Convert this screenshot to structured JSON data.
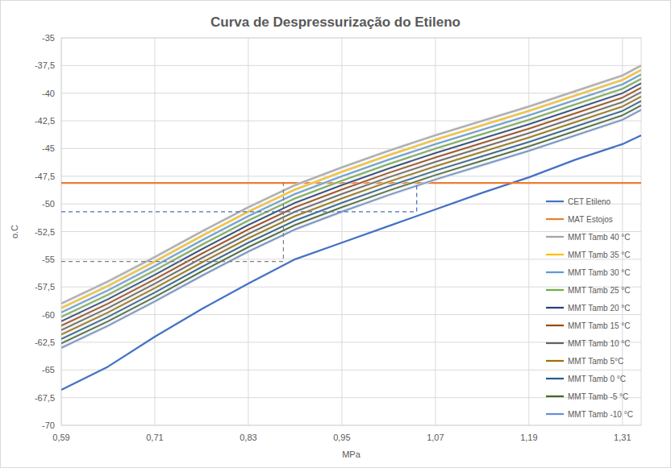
{
  "chart_data": {
    "type": "line",
    "title": "Curva de Despressurização do Etileno",
    "x_label": "MPa",
    "y_label": "o.C",
    "x": [
      0.59,
      0.65,
      0.71,
      0.77,
      0.83,
      0.89,
      0.95,
      1.01,
      1.07,
      1.13,
      1.19,
      1.25,
      1.31,
      1.334
    ],
    "xlim": [
      0.59,
      1.334
    ],
    "ylim": [
      -70,
      -35
    ],
    "xticks": [
      {
        "value": 0.59,
        "label": "0,59"
      },
      {
        "value": 0.71,
        "label": "0,71"
      },
      {
        "value": 0.83,
        "label": "0,83"
      },
      {
        "value": 0.95,
        "label": "0,95"
      },
      {
        "value": 1.07,
        "label": "1,07"
      },
      {
        "value": 1.19,
        "label": "1,19"
      },
      {
        "value": 1.31,
        "label": "1,31"
      }
    ],
    "yticks": [
      -35,
      {
        "value": -37.5,
        "label": "-37,5"
      },
      -40,
      {
        "value": -42.5,
        "label": "-42,5"
      },
      -45,
      {
        "value": -47.5,
        "label": "-47,5"
      },
      -50,
      {
        "value": -52.5,
        "label": "-52,5"
      },
      -55,
      {
        "value": -57.5,
        "label": "-57,5"
      },
      -60,
      {
        "value": -62.5,
        "label": "-62,5"
      },
      -65,
      {
        "value": -67.5,
        "label": "-67,5"
      },
      -70
    ],
    "grid": true,
    "legend": "right",
    "series": [
      {
        "name": "CET Etileno",
        "color": "#4472c4",
        "values": [
          -66.8,
          -64.7,
          -62.0,
          -59.5,
          -57.2,
          -55.0,
          -53.5,
          -52.0,
          -50.5,
          -49.0,
          -47.6,
          -46.0,
          -44.6,
          -43.8
        ]
      },
      {
        "name": "MAT Estojos",
        "color": "#ed7d31",
        "values": [
          -48.1,
          -48.1,
          -48.1,
          -48.1,
          -48.1,
          -48.1,
          -48.1,
          -48.1,
          -48.1,
          -48.1,
          -48.1,
          -48.1,
          -48.1,
          -48.1
        ]
      },
      {
        "name": "MMT Tamb 40 °C",
        "color": "#a5a5a5",
        "values": [
          -59,
          -57,
          -54.8,
          -52.5,
          -50.3,
          -48.3,
          -46.7,
          -45.2,
          -43.8,
          -42.5,
          -41.2,
          -39.8,
          -38.4,
          -37.5
        ]
      },
      {
        "name": "MMT Tamb 35 °C",
        "color": "#ffc000",
        "values": [
          -59.4,
          -57.4,
          -55.2,
          -52.9,
          -50.7,
          -48.7,
          -47.1,
          -45.6,
          -44.2,
          -42.9,
          -41.6,
          -40.2,
          -38.8,
          -37.9
        ]
      },
      {
        "name": "MMT Tamb 30 °C",
        "color": "#5b9bd5",
        "values": [
          -59.8,
          -57.8,
          -55.6,
          -53.3,
          -51.1,
          -49.1,
          -47.5,
          -46,
          -44.6,
          -43.3,
          -42,
          -40.6,
          -39.2,
          -38.3
        ]
      },
      {
        "name": "MMT Tamb 25 °C",
        "color": "#70ad47",
        "values": [
          -60.2,
          -58.2,
          -56,
          -53.7,
          -51.5,
          -49.5,
          -47.9,
          -46.4,
          -45,
          -43.7,
          -42.4,
          -41,
          -39.6,
          -38.7
        ]
      },
      {
        "name": "MMT Tamb 20 °C",
        "color": "#264478",
        "values": [
          -60.6,
          -58.6,
          -56.4,
          -54.1,
          -51.9,
          -49.9,
          -48.3,
          -46.8,
          -45.4,
          -44.1,
          -42.8,
          -41.4,
          -40,
          -39.1
        ]
      },
      {
        "name": "MMT Tamb 15 °C",
        "color": "#9e480e",
        "values": [
          -61,
          -59,
          -56.8,
          -54.5,
          -52.3,
          -50.3,
          -48.7,
          -47.2,
          -45.8,
          -44.5,
          -43.2,
          -41.8,
          -40.4,
          -39.5
        ]
      },
      {
        "name": "MMT Tamb 10 °C",
        "color": "#636363",
        "values": [
          -61.4,
          -59.4,
          -57.2,
          -54.9,
          -52.7,
          -50.7,
          -49.1,
          -47.6,
          -46.2,
          -44.9,
          -43.6,
          -42.2,
          -40.8,
          -39.9
        ]
      },
      {
        "name": "MMT Tamb 5°C",
        "color": "#997300",
        "values": [
          -61.8,
          -59.8,
          -57.6,
          -55.3,
          -53.1,
          -51.1,
          -49.5,
          -48,
          -46.6,
          -45.3,
          -44,
          -42.6,
          -41.2,
          -40.3
        ]
      },
      {
        "name": "MMT Tamb 0 °C",
        "color": "#255e91",
        "values": [
          -62.2,
          -60.2,
          -58,
          -55.7,
          -53.5,
          -51.5,
          -49.9,
          -48.4,
          -47,
          -45.7,
          -44.4,
          -43,
          -41.6,
          -40.7
        ]
      },
      {
        "name": "MMT Tamb -5 °C",
        "color": "#43682b",
        "values": [
          -62.6,
          -60.6,
          -58.4,
          -56.1,
          -53.9,
          -51.9,
          -50.3,
          -48.8,
          -47.4,
          -46.1,
          -44.8,
          -43.4,
          -42,
          -41.1
        ]
      },
      {
        "name": "MMT Tamb -10 °C",
        "color": "#698ed0",
        "values": [
          -63,
          -61,
          -58.8,
          -56.5,
          -54.3,
          -52.3,
          -50.7,
          -49.2,
          -47.8,
          -46.5,
          -45.2,
          -43.8,
          -42.4,
          -41.5
        ]
      },
      {
        "color": "#4472c4",
        "line_style": "dashed",
        "x": [
          0.59,
          1.046,
          1.046
        ],
        "values": [
          -50.7,
          -50.7,
          -48.1
        ]
      },
      {
        "color": "#7f7f7f",
        "line_style": "dashed",
        "x": [
          0.59,
          0.875,
          0.875
        ],
        "values": [
          -55.2,
          -55.2,
          -48.1
        ]
      }
    ]
  }
}
